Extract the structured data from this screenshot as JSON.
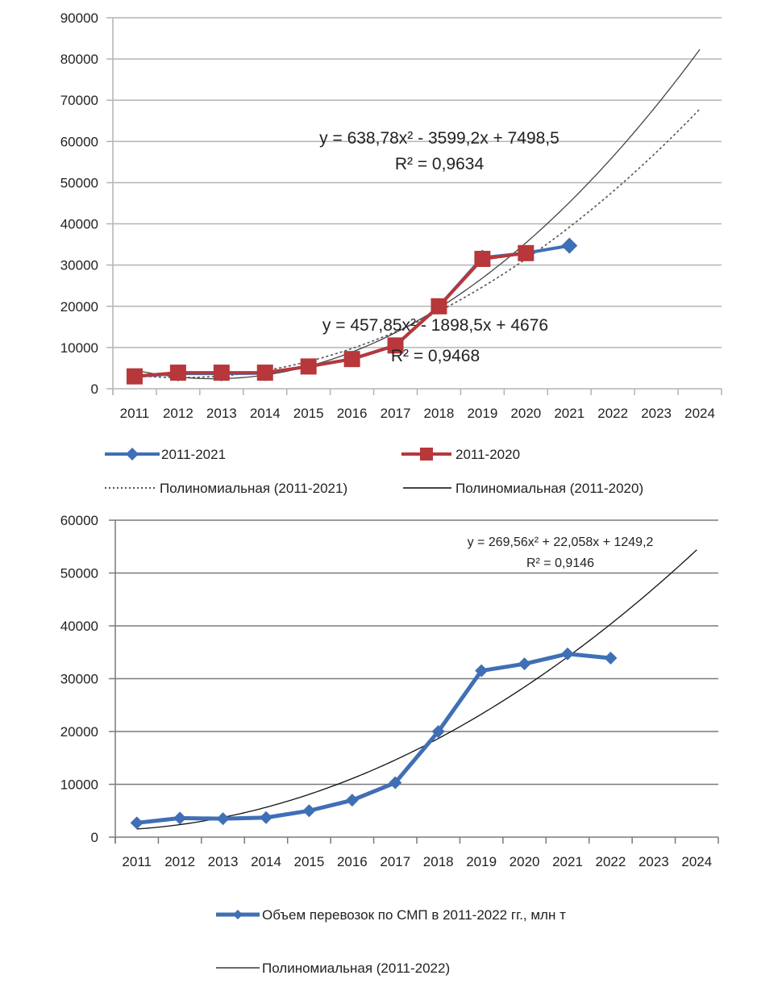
{
  "chart_data": [
    {
      "type": "line",
      "title": "",
      "xlabel": "",
      "ylabel": "",
      "categories": [
        "2011",
        "2012",
        "2013",
        "2014",
        "2015",
        "2016",
        "2017",
        "2018",
        "2019",
        "2020",
        "2021",
        "2022",
        "2023",
        "2024"
      ],
      "ylim": [
        0,
        90000
      ],
      "yticks": [
        0,
        10000,
        20000,
        30000,
        40000,
        50000,
        60000,
        70000,
        80000,
        90000
      ],
      "grid": true,
      "legend_position": "bottom",
      "series": [
        {
          "name": "2011-2021",
          "color": "#3f6fb6",
          "marker": "diamond",
          "values": [
            3000,
            3700,
            3700,
            3800,
            5400,
            7200,
            10500,
            20000,
            31800,
            32900,
            34700,
            null,
            null,
            null
          ]
        },
        {
          "name": "2011-2020",
          "color": "#b7373a",
          "marker": "square",
          "values": [
            3000,
            3900,
            3900,
            3900,
            5400,
            7200,
            10500,
            20000,
            31500,
            32900,
            null,
            null,
            null,
            null
          ]
        }
      ],
      "trendlines": [
        {
          "name": "Полиномиальная (2011-2021)",
          "style": "dotted",
          "color": "#555555",
          "coefficients": [
            457.85,
            -1898.5,
            4676
          ],
          "equation": "y = 457,85x² - 1898,5x + 4676",
          "r2": "R² = 0,9468"
        },
        {
          "name": "Полиномиальная (2011-2020)",
          "style": "solid",
          "color": "#444444",
          "coefficients": [
            638.78,
            -3599.2,
            7498.5
          ],
          "equation": "y = 638,78x² - 3599,2x + 7498,5",
          "r2": "R² = 0,9634"
        }
      ],
      "legend": [
        {
          "label": "2011-2021",
          "kind": "series",
          "index": 0
        },
        {
          "label": "2011-2020",
          "kind": "series",
          "index": 1
        },
        {
          "label": "Полиномиальная (2011-2021)",
          "kind": "trend",
          "index": 0
        },
        {
          "label": "Полиномиальная (2011-2020)",
          "kind": "trend",
          "index": 1
        }
      ]
    },
    {
      "type": "line",
      "title": "",
      "xlabel": "",
      "ylabel": "",
      "categories": [
        "2011",
        "2012",
        "2013",
        "2014",
        "2015",
        "2016",
        "2017",
        "2018",
        "2019",
        "2020",
        "2021",
        "2022",
        "2023",
        "2024"
      ],
      "ylim": [
        0,
        60000
      ],
      "yticks": [
        0,
        10000,
        20000,
        30000,
        40000,
        50000,
        60000
      ],
      "grid": true,
      "legend_position": "bottom",
      "series": [
        {
          "name": "Объем перевозок по СМП в 2011-2022 гг., млн т",
          "color": "#3f6fb6",
          "marker": "diamond",
          "values": [
            2700,
            3600,
            3500,
            3700,
            5000,
            7000,
            10300,
            20000,
            31500,
            32800,
            34700,
            33900,
            null,
            null
          ]
        }
      ],
      "trendlines": [
        {
          "name": "Полиномиальная (2011-2022)",
          "style": "solid",
          "color": "#111111",
          "coefficients": [
            269.56,
            22.058,
            1249.2
          ],
          "equation": "y = 269,56x² + 22,058x + 1249,2",
          "r2": "R² = 0,9146"
        }
      ],
      "legend": [
        {
          "label": "Объем перевозок по СМП в 2011-2022 гг., млн т",
          "kind": "series",
          "index": 0
        },
        {
          "label": "Полиномиальная (2011-2022)",
          "kind": "trend",
          "index": 0
        }
      ]
    }
  ]
}
